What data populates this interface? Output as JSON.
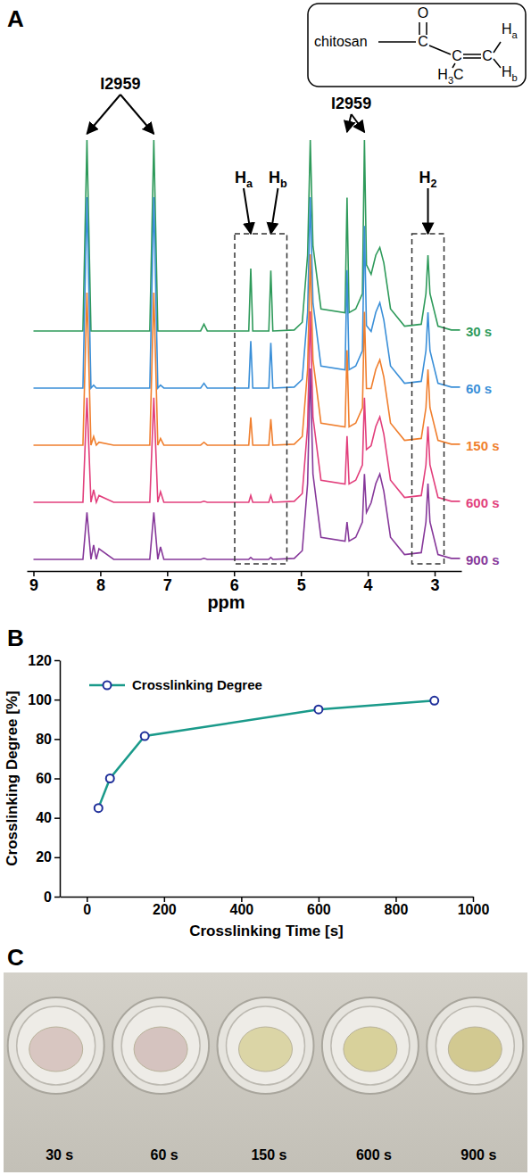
{
  "chart_data": [
    {
      "type": "line",
      "panel": "A",
      "x_label": "ppm",
      "x": [
        9.0,
        8.6,
        8.26,
        8.2,
        8.14,
        8.1,
        8.06,
        8.02,
        7.8,
        7.26,
        7.2,
        7.14,
        7.1,
        7.05,
        6.5,
        6.45,
        6.4,
        5.9,
        5.78,
        5.75,
        5.72,
        5.48,
        5.45,
        5.42,
        5.1,
        4.98,
        4.9,
        4.86,
        4.82,
        4.7,
        4.34,
        4.31,
        4.28,
        4.18,
        4.08,
        4.05,
        4.02,
        3.95,
        3.88,
        3.82,
        3.76,
        3.66,
        3.45,
        3.2,
        3.13,
        3.1,
        3.07,
        2.95,
        2.75,
        2.62
      ],
      "xlim": [
        9.1,
        2.6
      ],
      "xticks": [
        9,
        8,
        7,
        6,
        5,
        4,
        3
      ],
      "ylim": [
        0,
        100
      ],
      "tick_labels": "x",
      "series": [
        {
          "name": "30 s",
          "color": "#2e9a5a",
          "values": [
            0.5,
            0.5,
            0.5,
            100,
            0.5,
            0.5,
            0.5,
            0.5,
            0.5,
            0.5,
            100,
            0.5,
            0.5,
            0.5,
            0.5,
            4,
            0.5,
            0.5,
            0.5,
            33,
            0.5,
            0.5,
            32,
            0.5,
            1,
            5,
            40,
            100,
            45,
            12,
            10,
            70,
            10,
            12,
            20,
            100,
            35,
            30,
            40,
            44,
            36,
            12,
            3,
            4,
            20,
            40,
            20,
            3,
            1,
            1
          ]
        },
        {
          "name": "60 s",
          "color": "#3a8fd8",
          "values": [
            0.5,
            0.5,
            0.5,
            100,
            0.5,
            2,
            0.5,
            0.5,
            0.5,
            0.5,
            100,
            0.5,
            2,
            0.5,
            0.5,
            3,
            0.5,
            0.5,
            0.5,
            25,
            0.5,
            0.5,
            24,
            0.5,
            1,
            5,
            40,
            100,
            45,
            12,
            10,
            62,
            10,
            12,
            20,
            85,
            33,
            30,
            40,
            45,
            36,
            12,
            3,
            4,
            20,
            40,
            20,
            3,
            1,
            1
          ]
        },
        {
          "name": "150 s",
          "color": "#f07f2e",
          "values": [
            0.5,
            0.5,
            0.5,
            80,
            0.5,
            5,
            0.5,
            2,
            0.5,
            0.5,
            80,
            0.5,
            4,
            0.5,
            0.5,
            2,
            0.5,
            0.5,
            0.5,
            15,
            0.5,
            0.5,
            14,
            0.5,
            1,
            5,
            40,
            100,
            45,
            12,
            10,
            50,
            10,
            12,
            20,
            70,
            30,
            30,
            40,
            45,
            36,
            12,
            3,
            4,
            20,
            40,
            20,
            3,
            1,
            1
          ]
        },
        {
          "name": "600 s",
          "color": "#e23f7c",
          "values": [
            0.5,
            0.5,
            0.5,
            55,
            0.5,
            7,
            0.5,
            4,
            0.5,
            0.5,
            55,
            0.5,
            6,
            0.5,
            0.5,
            1,
            0.5,
            0.5,
            0.5,
            4,
            0.5,
            0.5,
            4,
            0.5,
            1,
            5,
            40,
            100,
            45,
            12,
            10,
            35,
            10,
            12,
            20,
            55,
            28,
            30,
            40,
            45,
            36,
            12,
            3,
            4,
            20,
            40,
            20,
            3,
            1,
            1
          ]
        },
        {
          "name": "900 s",
          "color": "#86389a",
          "values": [
            0.5,
            0.5,
            0.5,
            25,
            0.5,
            8,
            0.5,
            6,
            0.5,
            0.5,
            25,
            0.5,
            7,
            0.5,
            0.5,
            1,
            0.5,
            0.5,
            0.5,
            1.5,
            0.5,
            0.5,
            1.5,
            0.5,
            1,
            5,
            40,
            100,
            45,
            12,
            10,
            20,
            10,
            12,
            20,
            45,
            25,
            30,
            40,
            45,
            36,
            12,
            3,
            4,
            20,
            40,
            20,
            3,
            1,
            1
          ]
        }
      ],
      "annotations": [
        {
          "text": "I2959",
          "x": [
            8.2,
            7.2
          ]
        },
        {
          "text": "Ha",
          "x": [
            5.75
          ]
        },
        {
          "text": "Hb",
          "x": [
            5.45
          ]
        },
        {
          "text": "I2959",
          "x": [
            4.31,
            4.05
          ]
        },
        {
          "text": "H2",
          "x": [
            3.1
          ]
        }
      ]
    },
    {
      "type": "line",
      "panel": "B",
      "x_label": "Crosslinking Time [s]",
      "y_label": "Crosslinking Degree [%]",
      "x": [
        30,
        60,
        150,
        600,
        900
      ],
      "xlim": [
        -70,
        1000
      ],
      "xticks": [
        0,
        200,
        400,
        600,
        800,
        1000
      ],
      "ylim": [
        0,
        120
      ],
      "yticks": [
        0,
        20,
        40,
        60,
        80,
        100,
        120
      ],
      "legend": "upper left",
      "series": [
        {
          "name": "Crosslinking Degree",
          "color": "#1a9a8a",
          "marker": "circle",
          "values": [
            45,
            60,
            81.5,
            95,
            99.5
          ]
        }
      ]
    }
  ],
  "structure": {
    "labels": [
      "chitosan",
      "O",
      "C",
      "C",
      "C",
      "H3C",
      "Ha",
      "Hb"
    ]
  },
  "photo": {
    "panel": "C",
    "labels": [
      "30 s",
      "60 s",
      "150 s",
      "600 s",
      "900 s"
    ],
    "colors": [
      "#d8c6c1",
      "#d5c3bf",
      "#dbd5a6",
      "#d8d19b",
      "#d2c991"
    ]
  }
}
